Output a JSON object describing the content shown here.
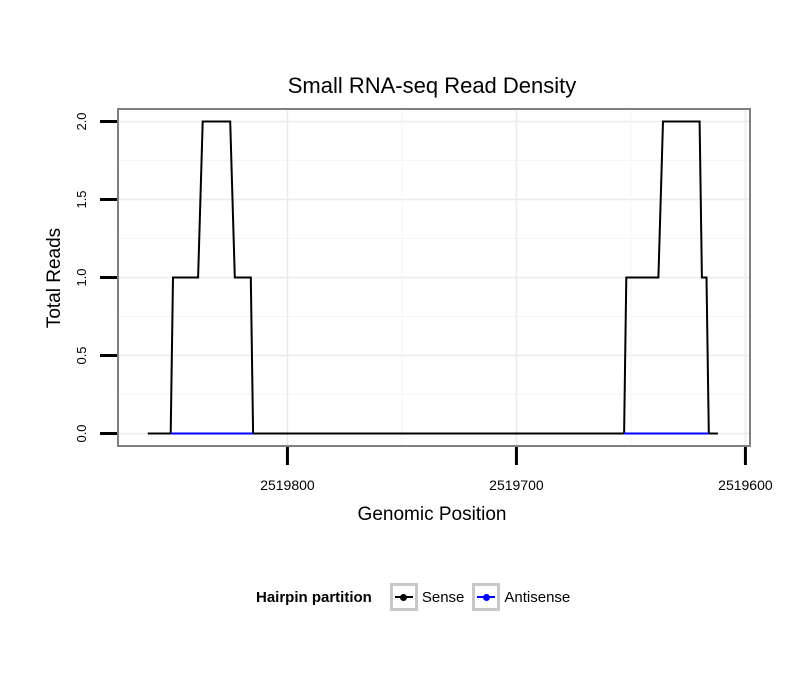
{
  "chart_data": {
    "type": "line",
    "title": "Small RNA-seq Read Density",
    "xlabel": "Genomic Position",
    "ylabel": "Total Reads",
    "xlim": [
      2519874,
      2519598
    ],
    "x_reversed": true,
    "ylim": [
      -0.08,
      2.08
    ],
    "x_ticks": [
      2519800,
      2519700,
      2519600
    ],
    "x_tick_labels": [
      "2519800",
      "2519700",
      "2519600"
    ],
    "y_ticks": [
      0.0,
      0.5,
      1.0,
      1.5,
      2.0
    ],
    "y_tick_labels": [
      "0.0",
      "0.5",
      "1.0",
      "1.5",
      "2.0"
    ],
    "grid": true,
    "legend_position": "bottom",
    "legend_title": "Hairpin partition",
    "series": [
      {
        "name": "Sense",
        "color": "#000000",
        "x": [
          2519861,
          2519851,
          2519850,
          2519839,
          2519837,
          2519825,
          2519823,
          2519816,
          2519815,
          2519653,
          2519652,
          2519638,
          2519636,
          2519620,
          2519619,
          2519617,
          2519616,
          2519612
        ],
        "y": [
          0,
          0,
          1,
          1,
          2,
          2,
          1,
          1,
          0,
          0,
          1,
          1,
          2,
          2,
          1,
          1,
          0,
          0
        ]
      },
      {
        "name": "Antisense",
        "color": "#0000ff",
        "x": [
          2519851,
          2519815,
          2519815,
          2519653,
          2519653,
          2519616
        ],
        "y": [
          0,
          0,
          null,
          null,
          0,
          0
        ]
      }
    ]
  }
}
